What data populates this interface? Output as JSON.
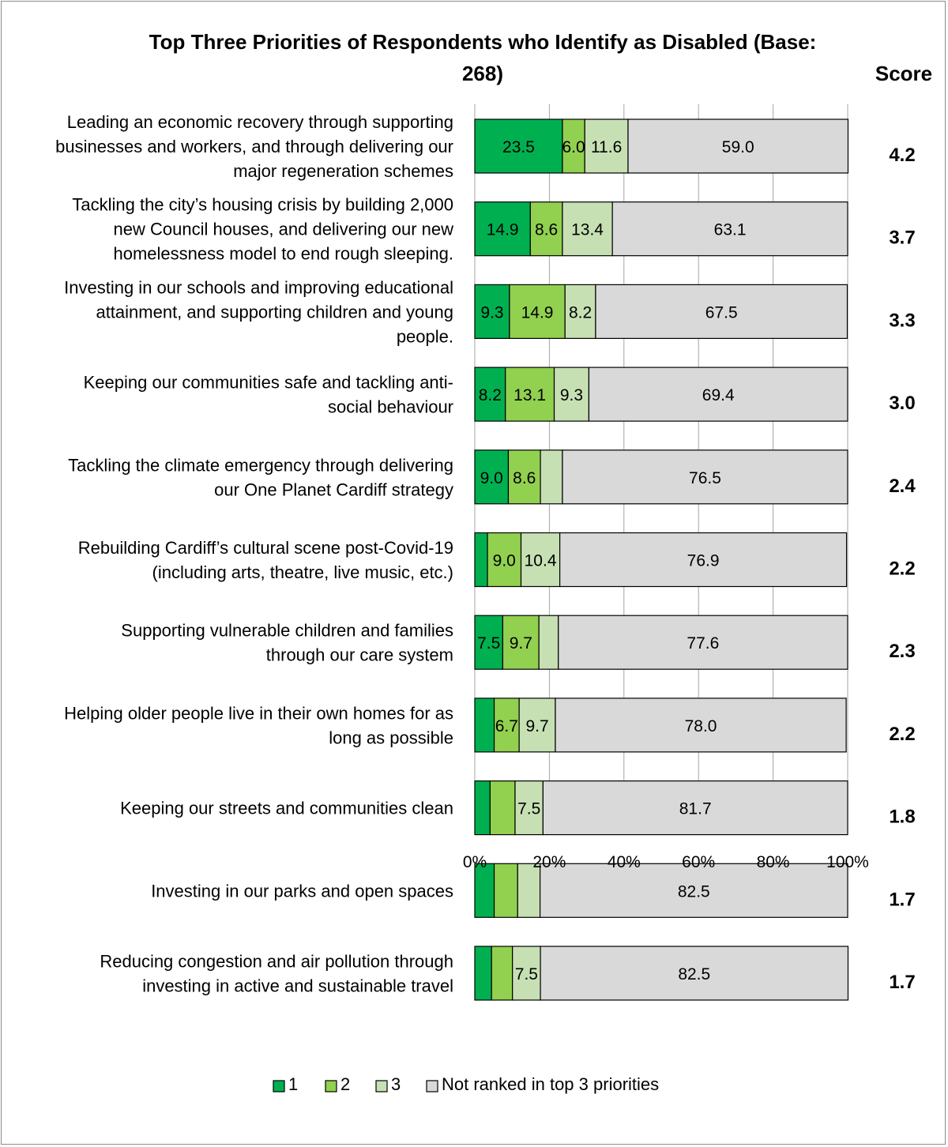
{
  "chart_data": {
    "type": "bar",
    "orientation": "horizontal",
    "stacked": true,
    "title": "Top Three Priorities of Respondents who Identify as Disabled (Base: 268)",
    "score_header": "Score",
    "categories": [
      "Leading an economic recovery through supporting businesses and workers, and through delivering our major regeneration schemes",
      "Tackling the city’s housing crisis by building 2,000 new Council houses, and delivering our new homelessness model to end rough sleeping.",
      "Investing in our schools and improving educational attainment, and supporting children and young people.",
      "Keeping our communities safe and tackling anti-social behaviour",
      "Tackling the climate emergency through delivering our One Planet Cardiff strategy",
      "Rebuilding Cardiff’s cultural scene post-Covid-19 (including arts, theatre, live music, etc.)",
      "Supporting vulnerable children and families through our care system",
      "Helping older people live in their own homes for as long as possible",
      "Keeping our streets and communities clean",
      "Investing in our parks and open spaces",
      "Reducing congestion and air pollution through investing in active and sustainable travel"
    ],
    "category_lines": [
      [
        "Leading an economic recovery through supporting",
        "businesses and workers, and through delivering our",
        "major regeneration schemes"
      ],
      [
        "Tackling the city’s housing crisis by building 2,000",
        "new Council houses, and delivering our new",
        "homelessness model to end rough sleeping."
      ],
      [
        "Investing in our schools and improving educational",
        "attainment, and supporting children and young",
        "people."
      ],
      [
        "Keeping our communities safe and tackling anti-",
        "social behaviour"
      ],
      [
        "Tackling the climate emergency through delivering",
        "our One Planet Cardiff strategy"
      ],
      [
        "Rebuilding Cardiff’s cultural scene post-Covid-19",
        "(including arts, theatre, live music, etc.)"
      ],
      [
        "Supporting vulnerable children and families",
        "through our care system"
      ],
      [
        "Helping older people live in their own homes for as",
        "long as possible"
      ],
      [
        "Keeping our streets and communities clean"
      ],
      [
        "Investing in our parks and open spaces"
      ],
      [
        "Reducing congestion and air pollution through",
        "investing in active and sustainable travel"
      ]
    ],
    "series": [
      {
        "name": "1",
        "color": "#00b050",
        "values": [
          23.5,
          14.9,
          9.3,
          8.2,
          9.0,
          3.4,
          7.5,
          5.2,
          4.1,
          5.2,
          4.5
        ],
        "labels": [
          "23.5",
          "14.9",
          "9.3",
          "8.2",
          "9.0",
          "",
          "7.5",
          "",
          "",
          "",
          ""
        ]
      },
      {
        "name": "2",
        "color": "#92d050",
        "values": [
          6.0,
          8.6,
          14.9,
          13.1,
          8.6,
          9.0,
          9.7,
          6.7,
          6.7,
          6.3,
          5.6
        ],
        "labels": [
          "6.0",
          "8.6",
          "14.9",
          "13.1",
          "8.6",
          "9.0",
          "9.7",
          "6.7",
          "",
          "",
          ""
        ]
      },
      {
        "name": "3",
        "color": "#c6e0b4",
        "values": [
          11.6,
          13.4,
          8.2,
          9.3,
          5.9,
          10.4,
          5.2,
          9.7,
          7.5,
          6.0,
          7.5
        ],
        "labels": [
          "11.6",
          "13.4",
          "8.2",
          "9.3",
          "",
          "10.4",
          "",
          "9.7",
          "7.5",
          "",
          "7.5"
        ]
      },
      {
        "name": "Not ranked in top 3 priorities",
        "color": "#d9d9d9",
        "values": [
          59.0,
          63.1,
          67.5,
          69.4,
          76.5,
          76.9,
          77.6,
          78.0,
          81.7,
          82.5,
          82.5
        ],
        "labels": [
          "59.0",
          "63.1",
          "67.5",
          "69.4",
          "76.5",
          "76.9",
          "77.6",
          "78.0",
          "81.7",
          "82.5",
          "82.5"
        ]
      }
    ],
    "scores": [
      "4.2",
      "3.7",
      "3.3",
      "3.0",
      "2.4",
      "2.2",
      "2.3",
      "2.2",
      "1.8",
      "1.7",
      "1.7"
    ],
    "x_ticks": [
      "0%",
      "20%",
      "40%",
      "60%",
      "80%",
      "100%"
    ],
    "xlim": [
      0,
      100
    ],
    "grid": true,
    "legend_position": "bottom"
  }
}
